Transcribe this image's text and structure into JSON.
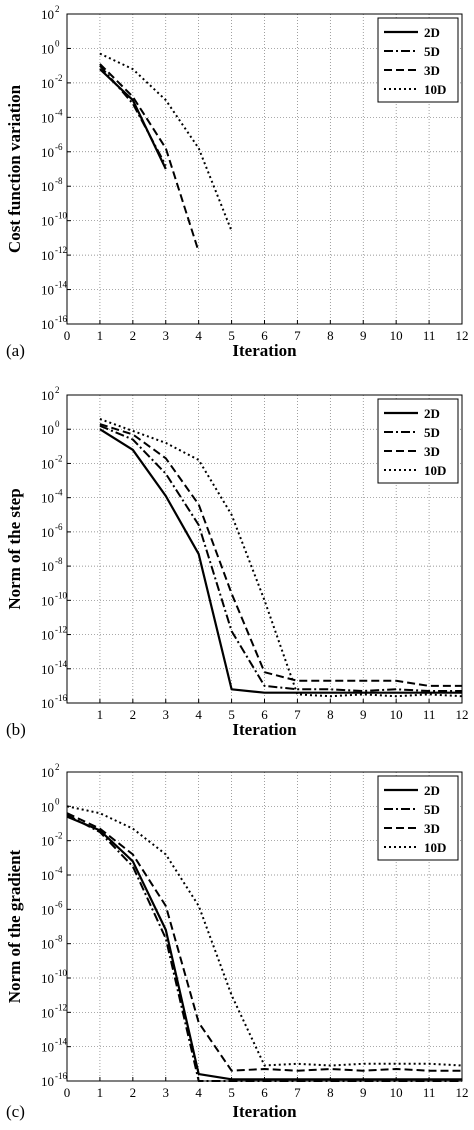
{
  "chart_data": [
    {
      "type": "line",
      "panel_label": "(a)",
      "xlabel": "Iteration",
      "ylabel": "Cost function variation",
      "yscale": "log",
      "xlim": [
        0,
        12
      ],
      "ylim_exp": [
        -16,
        2
      ],
      "x_ticks": [
        "0",
        "1",
        "2",
        "3",
        "4",
        "5",
        "6",
        "7",
        "8",
        "9",
        "10",
        "11",
        "12"
      ],
      "y_tick_exponents": [
        "2",
        "0",
        "-2",
        "-4",
        "-6",
        "-8",
        "-10",
        "-12",
        "-14",
        "-16"
      ],
      "grid": true,
      "legend_position": "top-right",
      "series": [
        {
          "name": "2D",
          "style": "solid",
          "x": [
            1,
            2,
            3
          ],
          "y_exp": [
            -1.2,
            -3.0,
            -7.0
          ]
        },
        {
          "name": "5D",
          "style": "dashdot",
          "x": [
            1,
            2,
            3
          ],
          "y_exp": [
            -1.0,
            -3.2,
            -6.8
          ]
        },
        {
          "name": "3D",
          "style": "dashed",
          "x": [
            1,
            2,
            3,
            4
          ],
          "y_exp": [
            -0.9,
            -2.8,
            -5.8,
            -11.8
          ]
        },
        {
          "name": "10D",
          "style": "dotted",
          "x": [
            1,
            2,
            3,
            4,
            5
          ],
          "y_exp": [
            -0.3,
            -1.2,
            -3.0,
            -5.8,
            -10.6
          ]
        }
      ]
    },
    {
      "type": "line",
      "panel_label": "(b)",
      "xlabel": "Iteration",
      "ylabel": "Norm of the step",
      "yscale": "log",
      "xlim": [
        0,
        12
      ],
      "ylim_exp": [
        -16,
        2
      ],
      "x_ticks": [
        "1",
        "2",
        "3",
        "4",
        "5",
        "6",
        "7",
        "8",
        "9",
        "10",
        "11",
        "12"
      ],
      "y_tick_exponents": [
        "2",
        "0",
        "-2",
        "-4",
        "-6",
        "-8",
        "-10",
        "-12",
        "-14",
        "-16"
      ],
      "grid": true,
      "legend_position": "top-right",
      "series": [
        {
          "name": "2D",
          "style": "solid",
          "x": [
            1,
            2,
            3,
            4,
            5,
            6,
            7,
            8,
            9,
            10,
            11,
            12
          ],
          "y_exp": [
            0.0,
            -1.2,
            -3.9,
            -7.3,
            -15.2,
            -15.4,
            -15.4,
            -15.4,
            -15.4,
            -15.4,
            -15.4,
            -15.4
          ]
        },
        {
          "name": "5D",
          "style": "dashdot",
          "x": [
            1,
            2,
            3,
            4,
            5,
            6,
            7,
            8,
            9,
            10,
            11,
            12
          ],
          "y_exp": [
            0.2,
            -0.6,
            -2.6,
            -5.6,
            -11.8,
            -15.0,
            -15.2,
            -15.2,
            -15.3,
            -15.2,
            -15.3,
            -15.3
          ]
        },
        {
          "name": "3D",
          "style": "dashed",
          "x": [
            1,
            2,
            3,
            4,
            5,
            6,
            7,
            8,
            9,
            10,
            11,
            12
          ],
          "y_exp": [
            0.3,
            -0.3,
            -1.7,
            -4.4,
            -9.6,
            -14.2,
            -14.7,
            -14.7,
            -14.7,
            -14.7,
            -15.0,
            -15.0
          ]
        },
        {
          "name": "10D",
          "style": "dotted",
          "x": [
            1,
            2,
            3,
            4,
            5,
            6,
            7,
            8,
            9,
            10,
            11,
            12
          ],
          "y_exp": [
            0.6,
            -0.1,
            -0.8,
            -1.8,
            -5.0,
            -10.0,
            -15.5,
            -15.6,
            -15.5,
            -15.6,
            -15.5,
            -15.6
          ]
        }
      ]
    },
    {
      "type": "line",
      "panel_label": "(c)",
      "xlabel": "Iteration",
      "ylabel": "Norm of the gradient",
      "yscale": "log",
      "xlim": [
        0,
        12
      ],
      "ylim_exp": [
        -16,
        2
      ],
      "x_ticks": [
        "0",
        "1",
        "2",
        "3",
        "4",
        "5",
        "6",
        "7",
        "8",
        "9",
        "10",
        "11",
        "12"
      ],
      "y_tick_exponents": [
        "2",
        "0",
        "-2",
        "-4",
        "-6",
        "-8",
        "-10",
        "-12",
        "-14",
        "-16"
      ],
      "grid": true,
      "legend_position": "top-right",
      "series": [
        {
          "name": "2D",
          "style": "solid",
          "x": [
            0,
            1,
            2,
            3,
            4,
            5,
            6,
            7,
            8,
            9,
            10,
            11,
            12
          ],
          "y_exp": [
            -0.6,
            -1.4,
            -3.2,
            -7.2,
            -15.6,
            -15.9,
            -15.9,
            -15.9,
            -15.9,
            -15.9,
            -15.9,
            -15.9,
            -15.9
          ]
        },
        {
          "name": "5D",
          "style": "dashdot",
          "x": [
            0,
            1,
            2,
            3,
            4,
            5,
            6,
            7,
            8,
            9,
            10,
            11,
            12
          ],
          "y_exp": [
            -0.5,
            -1.5,
            -3.5,
            -7.7,
            -16.0,
            -16.0,
            -16.0,
            -16.0,
            -16.0,
            -16.0,
            -16.0,
            -16.0,
            -16.0
          ]
        },
        {
          "name": "3D",
          "style": "dashed",
          "x": [
            0,
            1,
            2,
            3,
            4,
            5,
            6,
            7,
            8,
            9,
            10,
            11,
            12
          ],
          "y_exp": [
            -0.4,
            -1.3,
            -2.8,
            -5.8,
            -12.6,
            -15.4,
            -15.3,
            -15.4,
            -15.3,
            -15.4,
            -15.3,
            -15.4,
            -15.4
          ]
        },
        {
          "name": "10D",
          "style": "dotted",
          "x": [
            0,
            1,
            2,
            3,
            4,
            5,
            6,
            7,
            8,
            9,
            10,
            11,
            12
          ],
          "y_exp": [
            0.0,
            -0.4,
            -1.3,
            -2.8,
            -5.8,
            -11.0,
            -15.1,
            -15.0,
            -15.1,
            -15.0,
            -15.0,
            -15.0,
            -15.1
          ]
        }
      ]
    }
  ]
}
